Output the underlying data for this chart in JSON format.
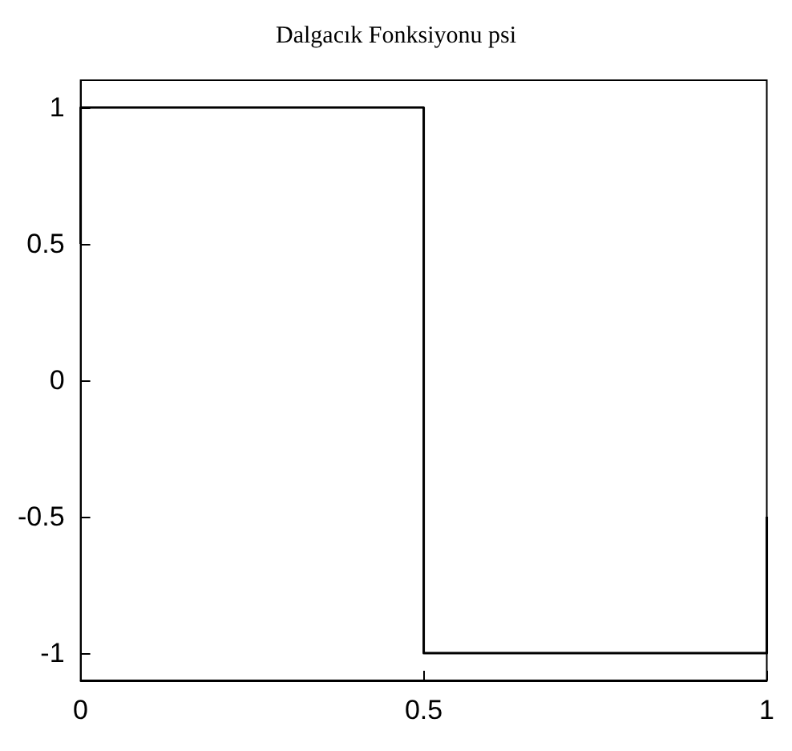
{
  "chart_data": {
    "type": "line",
    "title": "Dalgacık Fonksiyonu psi",
    "x": [
      0,
      0,
      0.5,
      0.5,
      1,
      1
    ],
    "series": [
      {
        "color": "#000000",
        "values": [
          0.5,
          1,
          1,
          -1,
          -1,
          -0.5
        ]
      }
    ],
    "xlim": [
      0,
      1
    ],
    "xticks": [
      0,
      0.5,
      1
    ],
    "ylim": [
      -1.1,
      1.1
    ],
    "yticks": [
      -1,
      -0.5,
      0,
      0.5,
      1
    ],
    "grid": false,
    "marker": "none",
    "line_style": "solid"
  }
}
